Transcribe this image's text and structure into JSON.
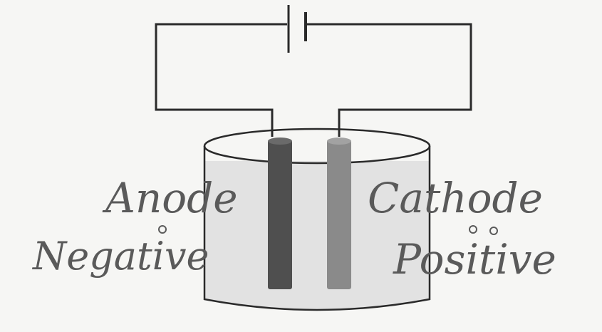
{
  "diagram": {
    "labels": {
      "anode": "Anode",
      "anode_sign": "Negative",
      "cathode": "Cathode",
      "cathode_sign": "Positive"
    },
    "colors": {
      "background": "#f6f6f4",
      "wire": "#2a2a2a",
      "electrolyte": "#e2e2e2",
      "anode_electrode": "#4f4f4f",
      "cathode_electrode": "#8a8a8a",
      "handwriting": "#5a5a5a"
    }
  }
}
